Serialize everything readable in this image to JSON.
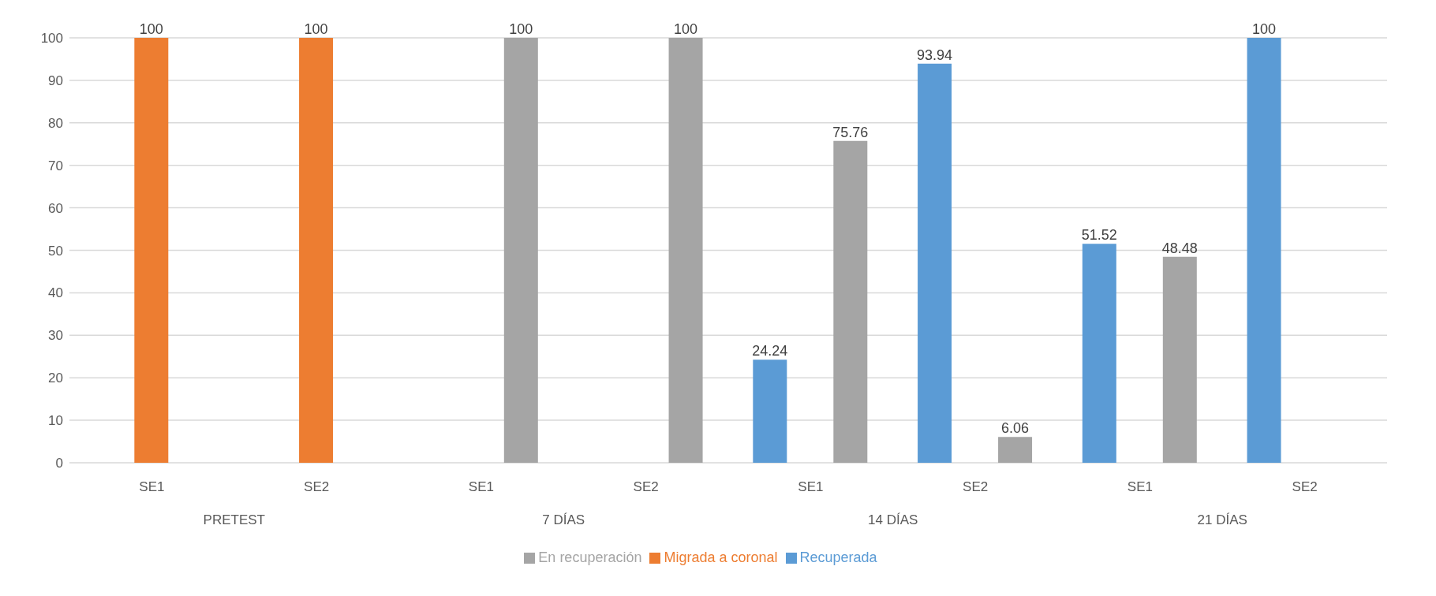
{
  "chart_data": {
    "type": "bar",
    "categories": [
      "SE1",
      "SE2",
      "SE1",
      "SE2",
      "SE1",
      "SE2",
      "SE1",
      "SE2"
    ],
    "annotations": [
      "PRETEST",
      "7 DÍAS",
      "14 DÍAS",
      "21 DÍAS"
    ],
    "series": [
      {
        "name": "Recuperada",
        "color": "#5b9bd5",
        "values": [
          null,
          null,
          null,
          null,
          24.24,
          93.94,
          51.52,
          100
        ]
      },
      {
        "name": "Migrada a coronal",
        "color": "#ed7d31",
        "values": [
          100,
          100,
          null,
          null,
          null,
          null,
          null,
          null
        ]
      },
      {
        "name": "En recuperación",
        "color": "#a5a5a5",
        "values": [
          null,
          null,
          100,
          100,
          75.76,
          6.06,
          48.48,
          null
        ]
      }
    ],
    "ylim": [
      0,
      100
    ],
    "yticks": [
      0,
      10,
      20,
      30,
      40,
      50,
      60,
      70,
      80,
      90,
      100
    ],
    "grid": "y",
    "legend": "bottom",
    "data_labels": true
  }
}
